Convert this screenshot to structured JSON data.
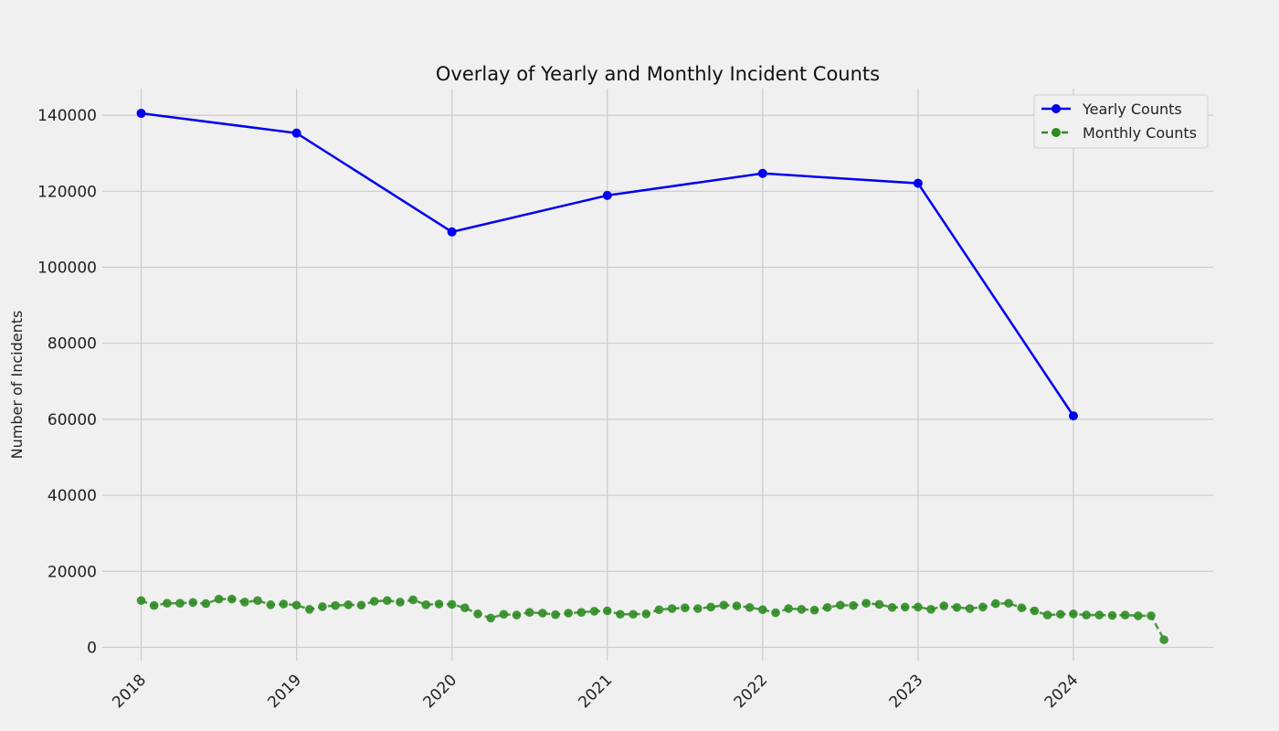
{
  "chart_data": {
    "type": "line",
    "title": "Overlay of Yearly and Monthly Incident Counts",
    "xlabel": "",
    "ylabel": "Number of Incidents",
    "ylim": [
      -3500,
      147000
    ],
    "y_ticks": [
      0,
      20000,
      40000,
      60000,
      80000,
      100000,
      120000,
      140000
    ],
    "x_ticks": [
      "2018",
      "2019",
      "2020",
      "2021",
      "2022",
      "2023",
      "2024"
    ],
    "grid": true,
    "legend_position": "top-right",
    "colors": {
      "yearly": "#0000ee",
      "monthly": "#2e8b22",
      "grid": "#cbcbcb",
      "background": "#f0f0f0"
    },
    "series": [
      {
        "name": "Yearly Counts",
        "style": "solid",
        "x": [
          2018,
          2019,
          2020,
          2021,
          2022,
          2023,
          2024
        ],
        "values": [
          140500,
          135300,
          109300,
          118900,
          124700,
          122100,
          60900
        ]
      },
      {
        "name": "Monthly Counts",
        "style": "dashed",
        "x_start": "2018-01",
        "values": [
          12300,
          11000,
          11600,
          11600,
          11800,
          11500,
          12700,
          12700,
          11900,
          12300,
          11200,
          11400,
          11100,
          10000,
          10700,
          11000,
          11200,
          11100,
          12100,
          12300,
          11900,
          12500,
          11200,
          11400,
          11300,
          10400,
          8800,
          7700,
          8700,
          8500,
          9200,
          9000,
          8600,
          9000,
          9200,
          9500,
          9600,
          8700,
          8700,
          8800,
          9900,
          10200,
          10400,
          10200,
          10600,
          11100,
          10900,
          10500,
          9900,
          9100,
          10200,
          10000,
          9800,
          10500,
          11100,
          11000,
          11600,
          11300,
          10500,
          10600,
          10600,
          10000,
          10900,
          10500,
          10200,
          10600,
          11500,
          11600,
          10400,
          9600,
          8500,
          8700,
          8800,
          8500,
          8500,
          8400,
          8500,
          8300,
          8300,
          2000
        ]
      }
    ]
  }
}
